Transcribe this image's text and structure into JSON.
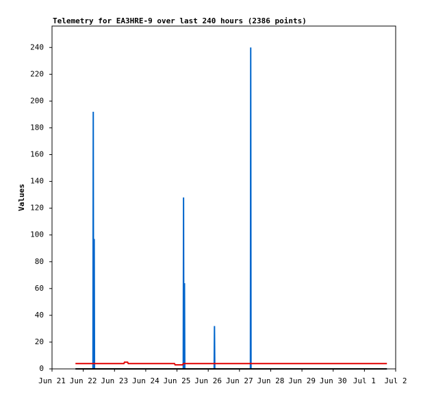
{
  "chart_data": {
    "type": "line",
    "title": "Telemetry for EA3HRE-9 over last 240 hours (2386 points)",
    "y_label": "Values",
    "xlim": [
      21,
      32
    ],
    "xticks": [
      {
        "value": 21,
        "label": "Jun 21"
      },
      {
        "value": 22,
        "label": "Jun 22"
      },
      {
        "value": 23,
        "label": "Jun 23"
      },
      {
        "value": 24,
        "label": "Jun 24"
      },
      {
        "value": 25,
        "label": "Jun 25"
      },
      {
        "value": 26,
        "label": "Jun 26"
      },
      {
        "value": 27,
        "label": "Jun 27"
      },
      {
        "value": 28,
        "label": "Jun 28"
      },
      {
        "value": 29,
        "label": "Jun 29"
      },
      {
        "value": 30,
        "label": "Jun 30"
      },
      {
        "value": 31,
        "label": "Jul 1"
      },
      {
        "value": 32,
        "label": "Jul 2"
      }
    ],
    "ylim": [
      0,
      256
    ],
    "yticks": [
      0,
      20,
      40,
      60,
      80,
      100,
      120,
      140,
      160,
      180,
      200,
      220,
      240
    ],
    "grid": false,
    "series": [
      {
        "color": "#0066cc",
        "x": [
          21.75,
          22.31,
          22.32,
          22.33,
          22.35,
          22.36,
          25.2,
          25.21,
          25.22,
          25.24,
          25.25,
          26.19,
          26.2,
          26.21,
          27.35,
          27.36,
          27.37,
          31.72
        ],
        "values": [
          0,
          0,
          192,
          0,
          97,
          0,
          0,
          128,
          0,
          64,
          0,
          0,
          32,
          0,
          0,
          240,
          0,
          0
        ]
      },
      {
        "color": "#e00000",
        "x": [
          21.75,
          23.3,
          23.32,
          23.42,
          23.44,
          24.92,
          24.94,
          25.18,
          25.2,
          31.72
        ],
        "values": [
          4,
          4,
          5,
          5,
          4,
          4,
          3,
          3,
          4,
          4
        ]
      },
      {
        "color": "#000000",
        "x": [
          21.75,
          31.72
        ],
        "values": [
          0,
          0
        ]
      }
    ]
  }
}
